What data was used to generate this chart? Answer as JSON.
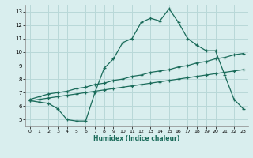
{
  "line1_x": [
    0,
    1,
    2,
    3,
    4,
    5,
    6,
    7,
    8,
    9,
    10,
    11,
    12,
    13,
    14,
    15,
    16,
    17,
    18,
    19,
    20,
    21,
    22,
    23
  ],
  "line1_y": [
    6.4,
    6.3,
    6.2,
    5.8,
    5.0,
    4.9,
    4.9,
    7.0,
    8.8,
    9.5,
    10.7,
    11.0,
    12.2,
    12.5,
    12.3,
    13.2,
    12.2,
    11.0,
    10.5,
    10.1,
    10.1,
    8.3,
    6.5,
    5.8
  ],
  "line2_x": [
    0,
    1,
    2,
    3,
    4,
    5,
    6,
    7,
    8,
    9,
    10,
    11,
    12,
    13,
    14,
    15,
    16,
    17,
    18,
    19,
    20,
    21,
    22,
    23
  ],
  "line2_y": [
    6.5,
    6.7,
    6.9,
    7.0,
    7.1,
    7.3,
    7.4,
    7.6,
    7.7,
    7.9,
    8.0,
    8.2,
    8.3,
    8.5,
    8.6,
    8.7,
    8.9,
    9.0,
    9.2,
    9.3,
    9.5,
    9.6,
    9.8,
    9.9
  ],
  "line3_x": [
    0,
    1,
    2,
    3,
    4,
    5,
    6,
    7,
    8,
    9,
    10,
    11,
    12,
    13,
    14,
    15,
    16,
    17,
    18,
    19,
    20,
    21,
    22,
    23
  ],
  "line3_y": [
    6.4,
    6.5,
    6.6,
    6.7,
    6.8,
    6.9,
    7.0,
    7.1,
    7.2,
    7.3,
    7.4,
    7.5,
    7.6,
    7.7,
    7.8,
    7.9,
    8.0,
    8.1,
    8.2,
    8.3,
    8.4,
    8.5,
    8.6,
    8.7
  ],
  "line_color": "#1a6b5a",
  "bg_color": "#d9eeee",
  "grid_color": "#b8d8d8",
  "xlabel": "Humidex (Indice chaleur)",
  "xlim": [
    -0.5,
    23.5
  ],
  "ylim": [
    4.5,
    13.5
  ],
  "yticks": [
    5,
    6,
    7,
    8,
    9,
    10,
    11,
    12,
    13
  ],
  "xticks": [
    0,
    1,
    2,
    3,
    4,
    5,
    6,
    7,
    8,
    9,
    10,
    11,
    12,
    13,
    14,
    15,
    16,
    17,
    18,
    19,
    20,
    21,
    22,
    23
  ]
}
